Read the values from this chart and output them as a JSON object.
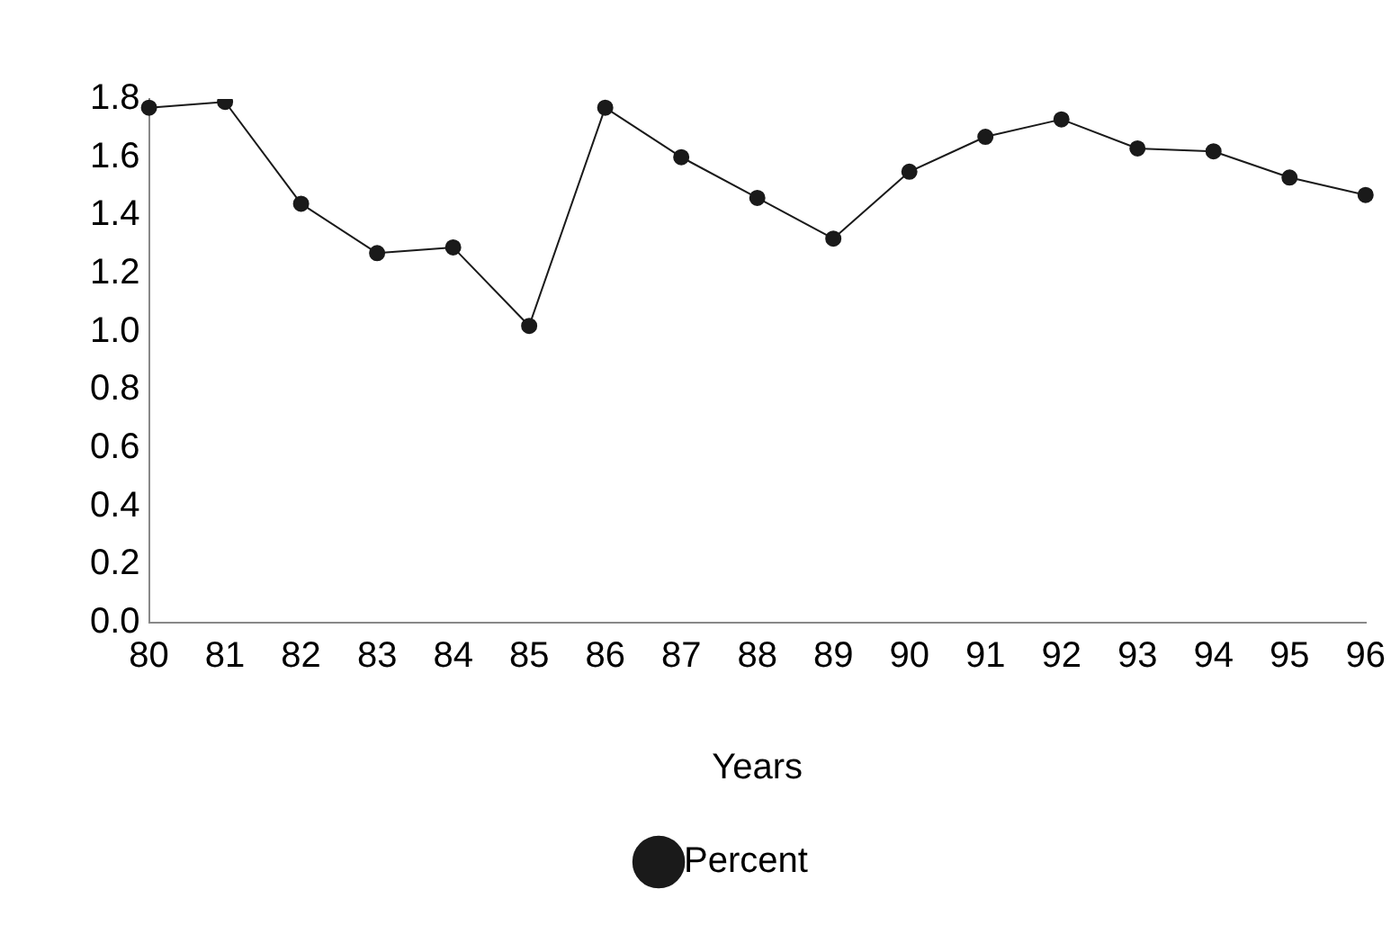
{
  "chart_data": {
    "type": "line",
    "xlabel": "Years",
    "categories": [
      "80",
      "81",
      "82",
      "83",
      "84",
      "85",
      "86",
      "87",
      "88",
      "89",
      "90",
      "91",
      "92",
      "93",
      "94",
      "95",
      "96"
    ],
    "series": [
      {
        "name": "Percent",
        "color": "#1a1a1a",
        "values": [
          1.77,
          1.79,
          1.44,
          1.27,
          1.29,
          1.02,
          1.77,
          1.6,
          1.46,
          1.32,
          1.55,
          1.67,
          1.73,
          1.63,
          1.62,
          1.53,
          1.47
        ]
      }
    ],
    "ylim": [
      0,
      1.8
    ],
    "yticks": [
      {
        "value": 0,
        "label": "0.0"
      },
      {
        "value": 0.2,
        "label": "0.2"
      },
      {
        "value": 0.4,
        "label": "0.4"
      },
      {
        "value": 0.6,
        "label": "0.6"
      },
      {
        "value": 0.8,
        "label": "0.8"
      },
      {
        "value": 1,
        "label": "1.0"
      },
      {
        "value": 1.2,
        "label": "1.2"
      },
      {
        "value": 1.4,
        "label": "1.4"
      },
      {
        "value": 1.6,
        "label": "1.6"
      },
      {
        "value": 1.8,
        "label": "1.8"
      }
    ],
    "grid": false,
    "legend": "bottom",
    "marker": "circle",
    "line_style": "solid"
  }
}
